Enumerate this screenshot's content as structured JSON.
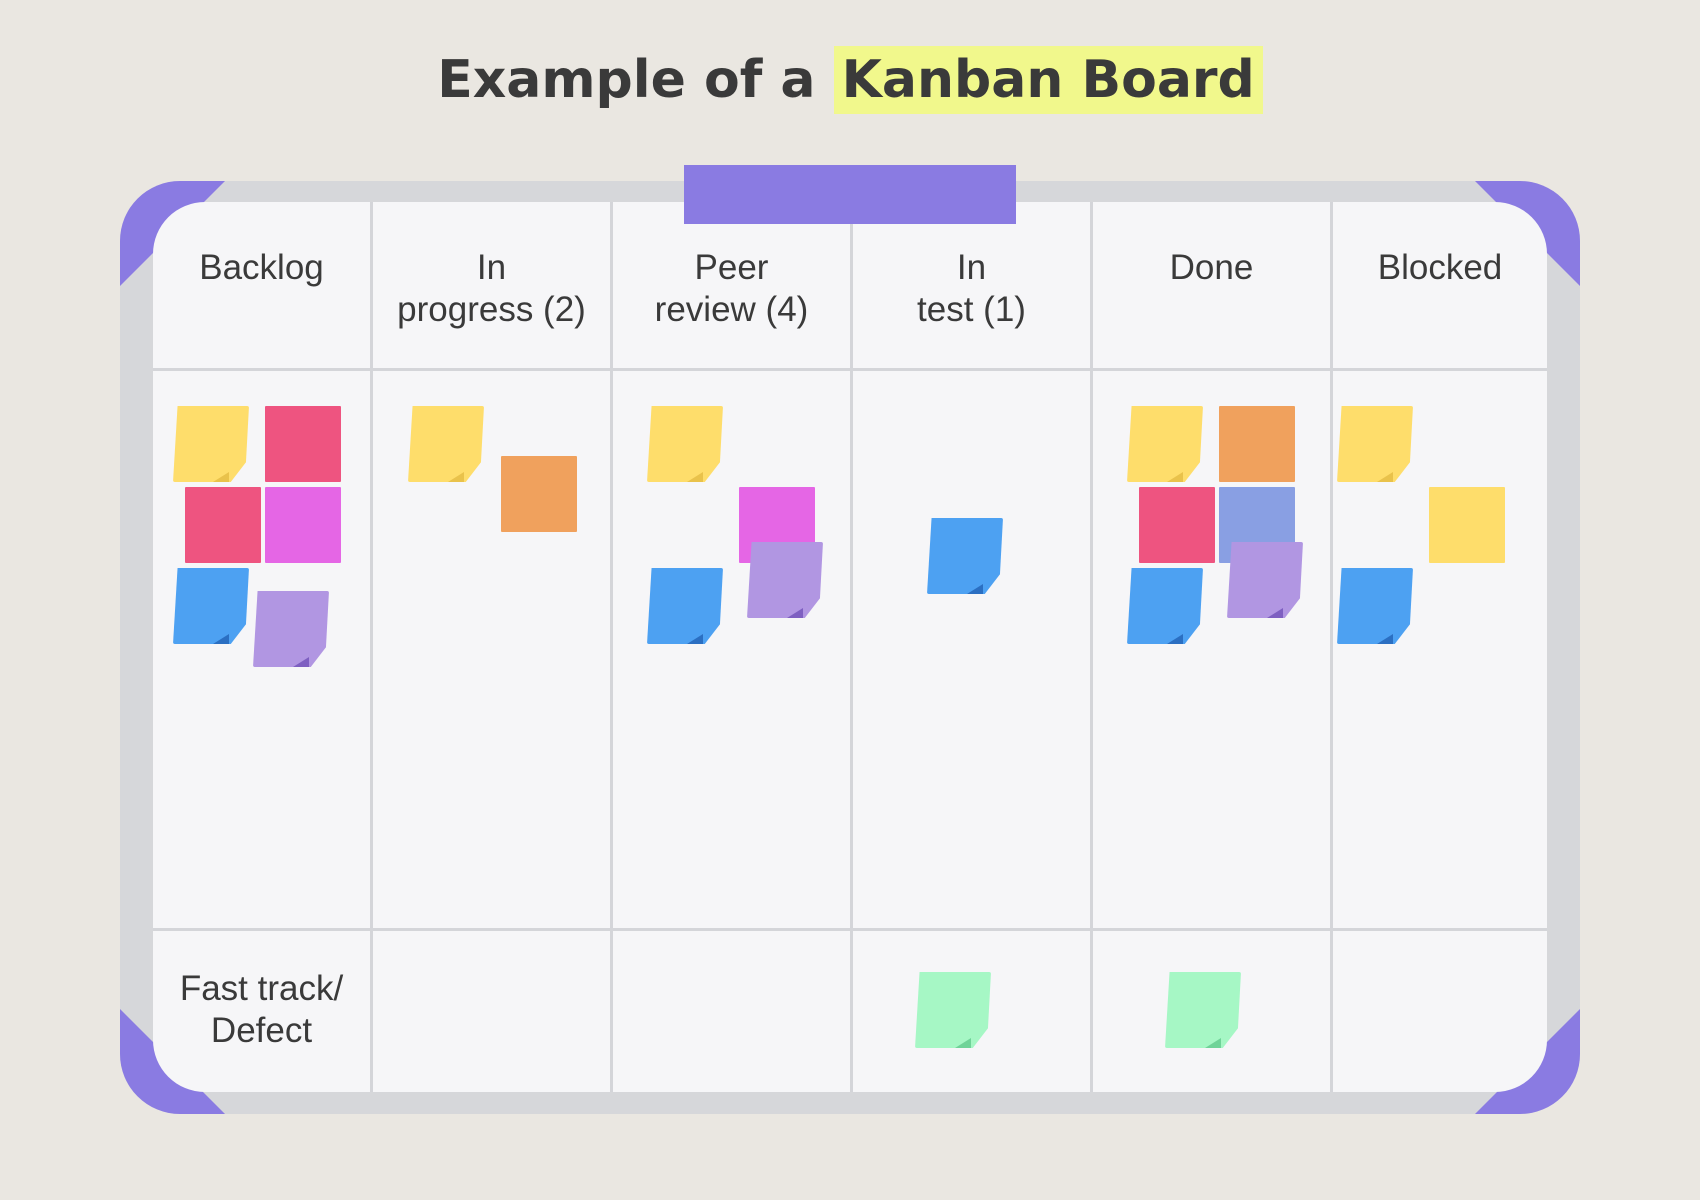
{
  "title": {
    "prefix": "Example of a",
    "highlight": "Kanban Board"
  },
  "columns": [
    {
      "label": "Backlog"
    },
    {
      "label": "In\nprogress (2)"
    },
    {
      "label": "Peer\nreview (4)"
    },
    {
      "label": "In\ntest (1)"
    },
    {
      "label": "Done"
    },
    {
      "label": "Blocked"
    }
  ],
  "rows": [
    {
      "label": ""
    },
    {
      "label": "Fast track/\nDefect"
    }
  ],
  "colors": {
    "background": "#EAE7E1",
    "highlight": "#F1F88C",
    "frame_accent": "#8A7BE2",
    "note_yellow": "#FEDD6B",
    "note_red": "#EE5480",
    "note_pink": "#E566E5",
    "note_orange": "#F0A15D",
    "note_blue": "#4DA1F2",
    "note_purple": "#B196E2",
    "note_slate": "#899FE3",
    "note_green": "#A6F7C5"
  },
  "notes_per_column": {
    "main": [
      6,
      2,
      4,
      1,
      6,
      3
    ],
    "fast_track": [
      0,
      0,
      0,
      1,
      1,
      0
    ]
  }
}
